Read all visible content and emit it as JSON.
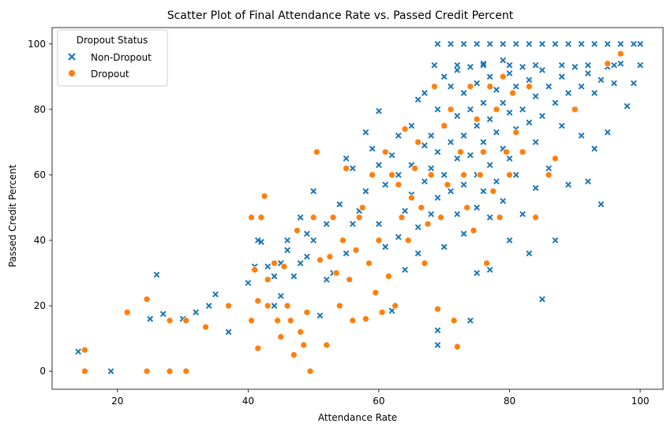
{
  "chart_data": {
    "type": "scatter",
    "title": "Scatter Plot of Final Attendance Rate vs. Passed Credit Percent",
    "xlabel": "Attendance Rate",
    "ylabel": "Passed Credit Percent",
    "xlim": [
      10,
      103.5
    ],
    "ylim": [
      -5.5,
      105
    ],
    "xticks": [
      20,
      40,
      60,
      80,
      100
    ],
    "yticks": [
      0,
      20,
      40,
      60,
      80,
      100
    ],
    "grid": false,
    "legend": {
      "title": "Dropout Status",
      "placement": "top-left"
    },
    "series": [
      {
        "name": "Non-Dropout",
        "marker": "x",
        "color": "#1f77b4",
        "points": [
          [
            14,
            6
          ],
          [
            19,
            0
          ],
          [
            25,
            16
          ],
          [
            26,
            29.5
          ],
          [
            27,
            17.5
          ],
          [
            30,
            16
          ],
          [
            32,
            18
          ],
          [
            34,
            20
          ],
          [
            35,
            23.5
          ],
          [
            37,
            12
          ],
          [
            40,
            27
          ],
          [
            41,
            32
          ],
          [
            41.5,
            40
          ],
          [
            42,
            39.5
          ],
          [
            43,
            32
          ],
          [
            44,
            20
          ],
          [
            44,
            29
          ],
          [
            45,
            23
          ],
          [
            45,
            33
          ],
          [
            46,
            37
          ],
          [
            46,
            40
          ],
          [
            47,
            29
          ],
          [
            48,
            33
          ],
          [
            48,
            47
          ],
          [
            49,
            35
          ],
          [
            49,
            42
          ],
          [
            50,
            40
          ],
          [
            50,
            55
          ],
          [
            51,
            17
          ],
          [
            52,
            45
          ],
          [
            52,
            28
          ],
          [
            53,
            30
          ],
          [
            54,
            51
          ],
          [
            55,
            36
          ],
          [
            55,
            65
          ],
          [
            56,
            62
          ],
          [
            56,
            45
          ],
          [
            57,
            49
          ],
          [
            58,
            73
          ],
          [
            58,
            55
          ],
          [
            59,
            68
          ],
          [
            60,
            79.5
          ],
          [
            60,
            63
          ],
          [
            60,
            45
          ],
          [
            61,
            57
          ],
          [
            61,
            38
          ],
          [
            62,
            66
          ],
          [
            62,
            18.5
          ],
          [
            63,
            72
          ],
          [
            63,
            41
          ],
          [
            63,
            60
          ],
          [
            64,
            49
          ],
          [
            64,
            31
          ],
          [
            65,
            75
          ],
          [
            65,
            63
          ],
          [
            65,
            54
          ],
          [
            66,
            83
          ],
          [
            66,
            44
          ],
          [
            66,
            36
          ],
          [
            67,
            69
          ],
          [
            67,
            58
          ],
          [
            67,
            85
          ],
          [
            68,
            72
          ],
          [
            68,
            62
          ],
          [
            68,
            48
          ],
          [
            69,
            80
          ],
          [
            69,
            67
          ],
          [
            69,
            53
          ],
          [
            69,
            8
          ],
          [
            69,
            12.5
          ],
          [
            70,
            90
          ],
          [
            70,
            75
          ],
          [
            70,
            60
          ],
          [
            70,
            38
          ],
          [
            71,
            87
          ],
          [
            71,
            70
          ],
          [
            71,
            55
          ],
          [
            72,
            92
          ],
          [
            72,
            78
          ],
          [
            72,
            65
          ],
          [
            72,
            48
          ],
          [
            73,
            85
          ],
          [
            73,
            72
          ],
          [
            73,
            57
          ],
          [
            73,
            42
          ],
          [
            74,
            93
          ],
          [
            74,
            80
          ],
          [
            74,
            66
          ],
          [
            74,
            15.5
          ],
          [
            75,
            88
          ],
          [
            75,
            75
          ],
          [
            75,
            60
          ],
          [
            75,
            50
          ],
          [
            75,
            30
          ],
          [
            76,
            94
          ],
          [
            76,
            82
          ],
          [
            76,
            70
          ],
          [
            76,
            55
          ],
          [
            77,
            90
          ],
          [
            77,
            77
          ],
          [
            77,
            63
          ],
          [
            77,
            47
          ],
          [
            77,
            31
          ],
          [
            78,
            86
          ],
          [
            78,
            73
          ],
          [
            78,
            58
          ],
          [
            79,
            95
          ],
          [
            79,
            82
          ],
          [
            79,
            68
          ],
          [
            79,
            52
          ],
          [
            80,
            91
          ],
          [
            80,
            79
          ],
          [
            80,
            65
          ],
          [
            80,
            40
          ],
          [
            81,
            87
          ],
          [
            81,
            74
          ],
          [
            81,
            60
          ],
          [
            82,
            93
          ],
          [
            82,
            80
          ],
          [
            82,
            67
          ],
          [
            82,
            48
          ],
          [
            83,
            89
          ],
          [
            83,
            76
          ],
          [
            83,
            36
          ],
          [
            84,
            84
          ],
          [
            84,
            70
          ],
          [
            84,
            56
          ],
          [
            85,
            92
          ],
          [
            85,
            78
          ],
          [
            85,
            22
          ],
          [
            86,
            87
          ],
          [
            86,
            62
          ],
          [
            87,
            82
          ],
          [
            87,
            40
          ],
          [
            88,
            90
          ],
          [
            88,
            75
          ],
          [
            89,
            85
          ],
          [
            89,
            57
          ],
          [
            90,
            93
          ],
          [
            90,
            80
          ],
          [
            91,
            87
          ],
          [
            91,
            72
          ],
          [
            92,
            91
          ],
          [
            92,
            58
          ],
          [
            93,
            85
          ],
          [
            93,
            68
          ],
          [
            94,
            89
          ],
          [
            94,
            51
          ],
          [
            95,
            93
          ],
          [
            95,
            73
          ],
          [
            96,
            88
          ],
          [
            97,
            94
          ],
          [
            98,
            81
          ],
          [
            99,
            88
          ],
          [
            68.5,
            93.5
          ],
          [
            72,
            93.5
          ],
          [
            76,
            93.5
          ],
          [
            80,
            93.5
          ],
          [
            84,
            93.5
          ],
          [
            88,
            93.5
          ],
          [
            92,
            93.5
          ],
          [
            96,
            93.5
          ],
          [
            100,
            93.5
          ],
          [
            69,
            100
          ],
          [
            71,
            100
          ],
          [
            73,
            100
          ],
          [
            75,
            100
          ],
          [
            77,
            100
          ],
          [
            79,
            100
          ],
          [
            81,
            100
          ],
          [
            83,
            100
          ],
          [
            85,
            100
          ],
          [
            87,
            100
          ],
          [
            89,
            100
          ],
          [
            91,
            100
          ],
          [
            93,
            100
          ],
          [
            95,
            100
          ],
          [
            97,
            100
          ],
          [
            99,
            100
          ],
          [
            100,
            100
          ]
        ]
      },
      {
        "name": "Dropout",
        "marker": "o",
        "color": "#ff7f0e",
        "points": [
          [
            15,
            6.5
          ],
          [
            15,
            0
          ],
          [
            21.5,
            18
          ],
          [
            24.5,
            22
          ],
          [
            24.5,
            0
          ],
          [
            28,
            15.5
          ],
          [
            28,
            0
          ],
          [
            30.5,
            15.5
          ],
          [
            30.5,
            0
          ],
          [
            33.5,
            13.5
          ],
          [
            37,
            20
          ],
          [
            40.5,
            15.5
          ],
          [
            40.5,
            47
          ],
          [
            41,
            31
          ],
          [
            41.5,
            21.5
          ],
          [
            41.5,
            7
          ],
          [
            42,
            47
          ],
          [
            42.5,
            53.5
          ],
          [
            43,
            20
          ],
          [
            43,
            28
          ],
          [
            44,
            33
          ],
          [
            44.5,
            15.5
          ],
          [
            45,
            10.5
          ],
          [
            45.5,
            32
          ],
          [
            46,
            20
          ],
          [
            46.5,
            15.5
          ],
          [
            47,
            5
          ],
          [
            47.5,
            43
          ],
          [
            48,
            12
          ],
          [
            48.5,
            8
          ],
          [
            49,
            18
          ],
          [
            49.5,
            0
          ],
          [
            50,
            47
          ],
          [
            50.5,
            67
          ],
          [
            51,
            34
          ],
          [
            52,
            8
          ],
          [
            52.5,
            35
          ],
          [
            53,
            47
          ],
          [
            53.5,
            30
          ],
          [
            54,
            20
          ],
          [
            54.5,
            40
          ],
          [
            55,
            62
          ],
          [
            55.5,
            28
          ],
          [
            56,
            15.5
          ],
          [
            56.5,
            37
          ],
          [
            57,
            47
          ],
          [
            57.5,
            50
          ],
          [
            58,
            16
          ],
          [
            58.5,
            33
          ],
          [
            59,
            60
          ],
          [
            59.5,
            24
          ],
          [
            60,
            40
          ],
          [
            60.5,
            18
          ],
          [
            61,
            67
          ],
          [
            61.5,
            29
          ],
          [
            62,
            60
          ],
          [
            62.5,
            20
          ],
          [
            63,
            57
          ],
          [
            63.5,
            47
          ],
          [
            64,
            74
          ],
          [
            64.5,
            40
          ],
          [
            65,
            53
          ],
          [
            65.5,
            62
          ],
          [
            66,
            70
          ],
          [
            66.5,
            50
          ],
          [
            67,
            33
          ],
          [
            67.5,
            45
          ],
          [
            68,
            60
          ],
          [
            68.5,
            87
          ],
          [
            69,
            19
          ],
          [
            69.5,
            47
          ],
          [
            70,
            75
          ],
          [
            70.5,
            57
          ],
          [
            71,
            80
          ],
          [
            71.5,
            15.5
          ],
          [
            72,
            7.5
          ],
          [
            72.5,
            67
          ],
          [
            73,
            60
          ],
          [
            73.5,
            50
          ],
          [
            74,
            87
          ],
          [
            74.5,
            43
          ],
          [
            75,
            77
          ],
          [
            75.5,
            60
          ],
          [
            76,
            67
          ],
          [
            76.5,
            33
          ],
          [
            77,
            87
          ],
          [
            77.5,
            55
          ],
          [
            78,
            80
          ],
          [
            78.5,
            47
          ],
          [
            79,
            90
          ],
          [
            79.5,
            67
          ],
          [
            80,
            60
          ],
          [
            80.5,
            85
          ],
          [
            81,
            73
          ],
          [
            82,
            67
          ],
          [
            83,
            87
          ],
          [
            84,
            47
          ],
          [
            86,
            60
          ],
          [
            87,
            65
          ],
          [
            90,
            80
          ],
          [
            95,
            94
          ],
          [
            97,
            97
          ]
        ]
      }
    ]
  }
}
